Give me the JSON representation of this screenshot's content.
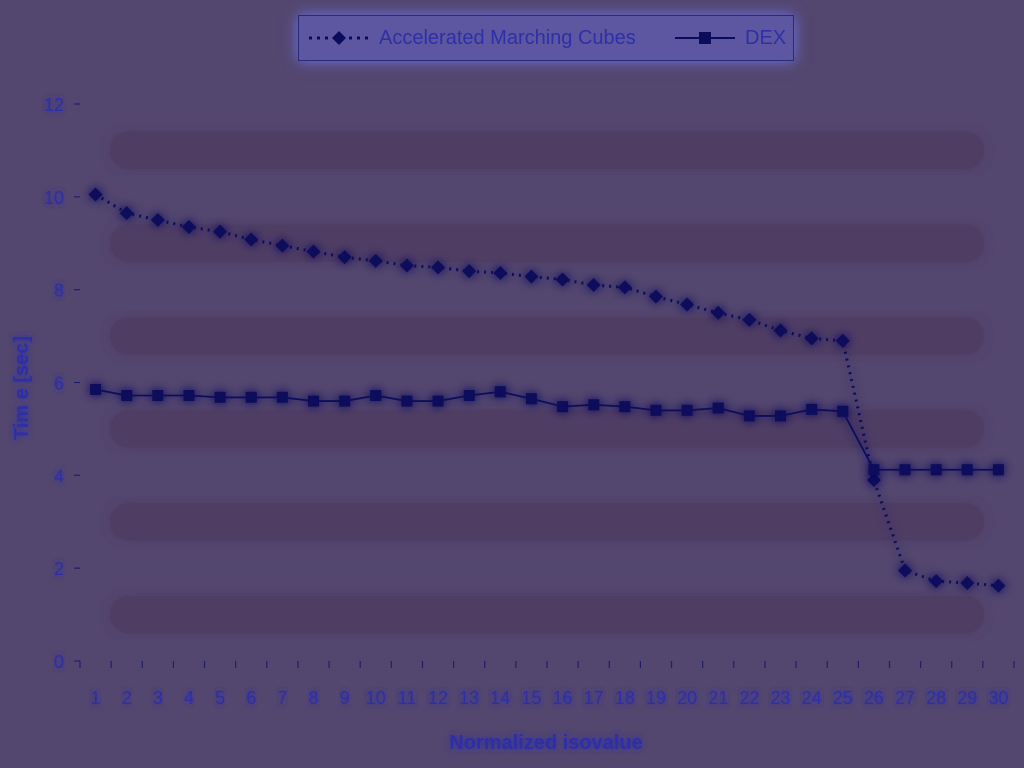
{
  "chart_data": {
    "type": "line",
    "title": "",
    "xlabel": "Normalized isovalue",
    "ylabel": "Tim e [sec]",
    "categories": [
      "1",
      "2",
      "3",
      "4",
      "5",
      "6",
      "7",
      "8",
      "9",
      "10",
      "11",
      "12",
      "13",
      "14",
      "15",
      "16",
      "17",
      "18",
      "19",
      "20",
      "21",
      "22",
      "23",
      "24",
      "25",
      "26",
      "27",
      "28",
      "29",
      "30"
    ],
    "ylim": [
      0,
      12
    ],
    "yticks": [
      "0",
      "2",
      "4",
      "6",
      "8",
      "10",
      "12"
    ],
    "grid": true,
    "legend_position": "top",
    "series": [
      {
        "name": "Accelerated Marching Cubes",
        "style": "dotted",
        "marker": "diamond",
        "values": [
          10.05,
          9.65,
          9.5,
          9.35,
          9.25,
          9.08,
          8.95,
          8.82,
          8.7,
          8.62,
          8.52,
          8.48,
          8.4,
          8.36,
          8.28,
          8.22,
          8.1,
          8.05,
          7.85,
          7.68,
          7.5,
          7.35,
          7.12,
          6.95,
          6.9,
          3.9,
          1.95,
          1.72,
          1.68,
          1.62
        ]
      },
      {
        "name": "DEX",
        "style": "solid",
        "marker": "square",
        "values": [
          5.85,
          5.72,
          5.72,
          5.72,
          5.68,
          5.68,
          5.68,
          5.6,
          5.6,
          5.72,
          5.6,
          5.6,
          5.72,
          5.8,
          5.65,
          5.48,
          5.52,
          5.48,
          5.4,
          5.4,
          5.45,
          5.28,
          5.28,
          5.42,
          5.38,
          4.12,
          4.12,
          4.12,
          4.12,
          4.12
        ]
      }
    ]
  },
  "colors": {
    "background": "#53466f",
    "plot_band_dark": "#4f3d64",
    "gridline": "#1e1e70",
    "axis": "#1e1e70",
    "text": "#2f2fa6",
    "series_line": "#0c0c5c",
    "glow": "#6f74e6"
  }
}
